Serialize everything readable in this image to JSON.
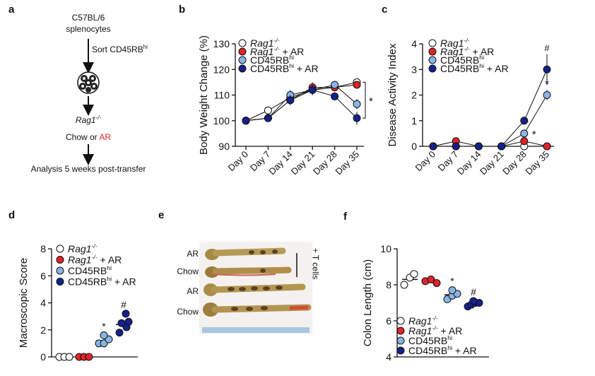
{
  "colors": {
    "white": "#ffffff",
    "red": "#e0242a",
    "lightblue": "#8ab6e6",
    "navy": "#16208c",
    "ar_text": "#e0242a"
  },
  "panel_a": {
    "label": "a",
    "strain": "C57BL/6",
    "cells": "splenocytes",
    "sort_prefix": "Sort CD45RB",
    "sort_sup": "hi",
    "recipient": "Rag1",
    "recipient_sup": "-/-",
    "diet_prefix": "Chow or ",
    "diet_ar": "AR",
    "analysis": "Analysis 5 weeks post-transfer"
  },
  "legend": [
    {
      "name": "Rag1",
      "sup": "-/-",
      "suffix": "",
      "italic": true,
      "color": "#ffffff"
    },
    {
      "name": "Rag1",
      "sup": "-/-",
      "suffix": " + AR",
      "italic": true,
      "color": "#e0242a"
    },
    {
      "name": "CD45RB",
      "sup": "hi",
      "suffix": "",
      "italic": false,
      "color": "#8ab6e6"
    },
    {
      "name": "CD45RB",
      "sup": "hi",
      "suffix": " + AR",
      "italic": false,
      "color": "#16208c"
    }
  ],
  "panel_e": {
    "label": "e",
    "rows": [
      "AR",
      "Chow",
      "AR",
      "Chow"
    ],
    "group_label": "+ T cells"
  },
  "chart_data": [
    {
      "id": "b",
      "type": "line",
      "label": "b",
      "title": "",
      "ylabel": "Body Weight Change (%)",
      "xlabel": "",
      "categories": [
        "Day 0",
        "Day 7",
        "Day 14",
        "Day 21",
        "Day 28",
        "Day 35"
      ],
      "yticks": [
        90,
        100,
        110,
        120,
        130
      ],
      "ylim": [
        90,
        130
      ],
      "series": [
        {
          "name": "Rag1-/-",
          "values": [
            100,
            104,
            109,
            112,
            113,
            115
          ],
          "errors": [
            0,
            0.5,
            1.5,
            1.5,
            1,
            1
          ]
        },
        {
          "name": "Rag1-/- + AR",
          "values": [
            100,
            101,
            108,
            113,
            113,
            114
          ],
          "errors": [
            0,
            0.5,
            1.5,
            2,
            1.5,
            1
          ]
        },
        {
          "name": "CD45RBhi",
          "values": [
            100,
            101,
            110,
            112,
            114,
            106.5
          ],
          "errors": [
            0,
            0.5,
            2,
            2,
            1.5,
            2
          ]
        },
        {
          "name": "CD45RBhi + AR",
          "values": [
            100,
            101,
            108,
            112,
            109.5,
            101
          ],
          "errors": [
            0,
            0.5,
            2,
            2,
            1.5,
            2.5
          ]
        }
      ],
      "annotations": [
        {
          "text": "*",
          "note": "bracket at Day 35"
        }
      ]
    },
    {
      "id": "c",
      "type": "line",
      "label": "c",
      "title": "",
      "ylabel": "Disease Activity Index",
      "xlabel": "",
      "categories": [
        "Day 0",
        "Day 7",
        "Day 14",
        "Day 21",
        "Day 28",
        "Day 35"
      ],
      "yticks": [
        0,
        1,
        2,
        3,
        4
      ],
      "ylim": [
        0,
        4
      ],
      "series": [
        {
          "name": "Rag1-/-",
          "values": [
            0,
            0,
            0,
            0,
            0,
            0
          ],
          "errors": [
            0,
            0,
            0,
            0,
            0,
            0
          ]
        },
        {
          "name": "Rag1-/- + AR",
          "values": [
            0,
            0.2,
            0,
            0,
            0.2,
            0
          ],
          "errors": [
            0,
            0.15,
            0,
            0,
            0.1,
            0
          ]
        },
        {
          "name": "CD45RBhi",
          "values": [
            0,
            0,
            0,
            0,
            0.5,
            2
          ],
          "errors": [
            0,
            0,
            0,
            0,
            0.15,
            0.2
          ]
        },
        {
          "name": "CD45RBhi + AR",
          "values": [
            0,
            0,
            0,
            0,
            1,
            3
          ],
          "errors": [
            0,
            0,
            0,
            0,
            0.15,
            0.6
          ]
        }
      ],
      "annotations": [
        {
          "text": "#",
          "series": "CD45RBhi + AR",
          "x": "Day 35"
        },
        {
          "text": "*",
          "series": "CD45RBhi",
          "x": "Day 35"
        },
        {
          "text": "*",
          "series": "CD45RBhi",
          "x": "Day 28"
        }
      ]
    },
    {
      "id": "d",
      "type": "scatter",
      "label": "d",
      "title": "",
      "ylabel": "Macroscopic Score",
      "xlabel": "",
      "yticks": [
        0,
        2,
        4,
        6,
        8
      ],
      "ylim": [
        0,
        8
      ],
      "series": [
        {
          "name": "Rag1-/-",
          "values": [
            0,
            0,
            0
          ],
          "mean": 0
        },
        {
          "name": "Rag1-/- + AR",
          "values": [
            0,
            0,
            0
          ],
          "mean": 0
        },
        {
          "name": "CD45RBhi",
          "values": [
            1,
            1,
            1.3,
            1.6
          ],
          "mean": 1.2
        },
        {
          "name": "CD45RBhi + AR",
          "values": [
            1.8,
            2.2,
            2.5,
            2.6,
            3.2
          ],
          "mean": 2.4
        }
      ],
      "annotations": [
        {
          "text": "*",
          "series": "CD45RBhi"
        },
        {
          "text": "#",
          "series": "CD45RBhi + AR"
        }
      ]
    },
    {
      "id": "f",
      "type": "scatter",
      "label": "f",
      "title": "",
      "ylabel": "Colon Length (cm)",
      "xlabel": "",
      "yticks": [
        4,
        6,
        8,
        10
      ],
      "ylim": [
        4,
        10
      ],
      "series": [
        {
          "name": "Rag1-/-",
          "values": [
            8.0,
            8.4,
            8.6
          ],
          "mean": 8.3
        },
        {
          "name": "Rag1-/- + AR",
          "values": [
            8.2,
            8.3,
            8.1
          ],
          "mean": 8.2
        },
        {
          "name": "CD45RBhi",
          "values": [
            7.2,
            7.4,
            7.5,
            7.7
          ],
          "mean": 7.45
        },
        {
          "name": "CD45RBhi + AR",
          "values": [
            6.8,
            6.9,
            7.0,
            7.0,
            7.1
          ],
          "mean": 6.95
        }
      ],
      "annotations": [
        {
          "text": "*",
          "series": "CD45RBhi"
        },
        {
          "text": "#",
          "series": "CD45RBhi + AR"
        }
      ]
    }
  ]
}
